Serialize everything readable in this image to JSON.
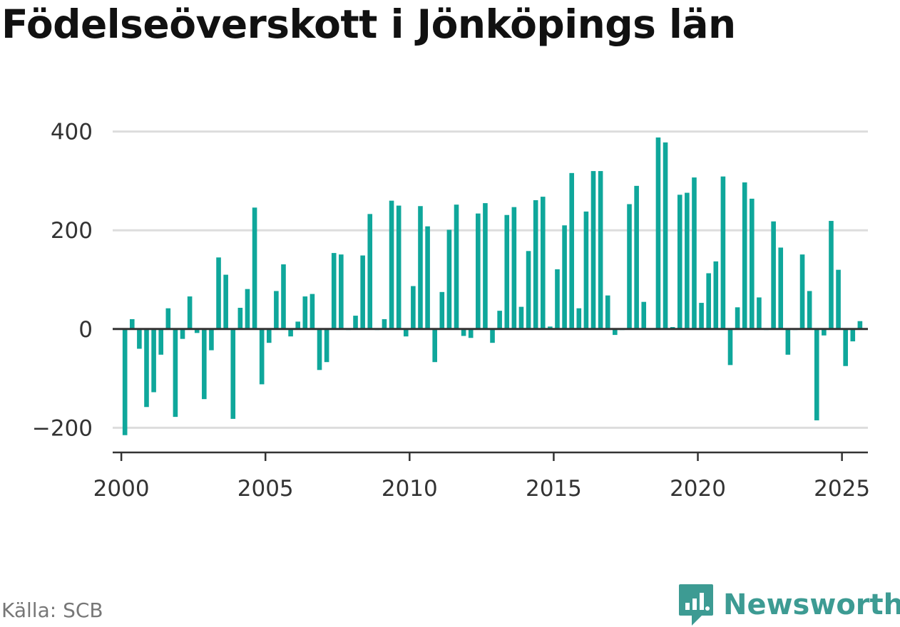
{
  "title": "Födelseöverskott i Jönköpings län",
  "source": "Källa: SCB",
  "brand": "Newsworthy",
  "colors": {
    "bar": "#0fa79b",
    "grid": "#dddddd",
    "axis": "#333333",
    "brand": "#3d9b93"
  },
  "chart_data": {
    "type": "bar",
    "title": "Födelseöverskott i Jönköpings län",
    "xlabel": "",
    "ylabel": "",
    "ylim": [
      -250,
      450
    ],
    "yticks": [
      -200,
      0,
      200,
      400
    ],
    "ytick_labels": [
      "−200",
      "0",
      "200",
      "400"
    ],
    "xlim": [
      1999.7,
      2025.9
    ],
    "xticks": [
      2000,
      2005,
      2010,
      2015,
      2020,
      2025
    ],
    "xtick_labels": [
      "2000",
      "2005",
      "2010",
      "2015",
      "2020",
      "2025"
    ],
    "grid": true,
    "frequency": "quarterly",
    "start_year": 2000,
    "values": [
      -215,
      20,
      -40,
      -158,
      -128,
      -52,
      42,
      -178,
      -20,
      66,
      -8,
      -142,
      -43,
      145,
      110,
      -182,
      43,
      81,
      246,
      -112,
      -28,
      77,
      131,
      -15,
      15,
      66,
      71,
      -83,
      -67,
      154,
      151,
      -2,
      27,
      149,
      233,
      -2,
      20,
      260,
      250,
      -15,
      87,
      249,
      208,
      -67,
      75,
      201,
      252,
      -14,
      -18,
      234,
      255,
      -28,
      37,
      231,
      247,
      45,
      158,
      261,
      268,
      5,
      121,
      210,
      316,
      42,
      238,
      320,
      320,
      68,
      -12,
      -2,
      253,
      290,
      55,
      0,
      388,
      378,
      4,
      272,
      276,
      307,
      53,
      113,
      137,
      309,
      -73,
      44,
      297,
      264,
      64,
      -2,
      218,
      165,
      -52,
      -2,
      151,
      77,
      -185,
      -13,
      219,
      120,
      -75,
      -25,
      16
    ]
  }
}
